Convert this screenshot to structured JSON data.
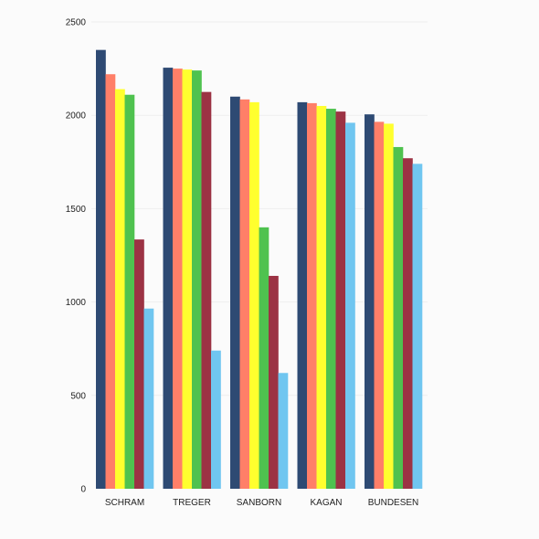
{
  "chart_data": {
    "type": "bar",
    "title": "",
    "xlabel": "",
    "ylabel": "",
    "ylim": [
      0,
      2500
    ],
    "yticks": [
      0,
      500,
      1000,
      1500,
      2000,
      2500
    ],
    "grid": false,
    "legend": "none",
    "categories": [
      "SCHRAM",
      "TREGER",
      "SANBORN",
      "KAGAN",
      "BUNDESEN"
    ],
    "series": [
      {
        "color": "#2e4a73",
        "values": [
          2350,
          2255,
          2100,
          2070,
          2005
        ]
      },
      {
        "color": "#ff7f68",
        "values": [
          2220,
          2250,
          2085,
          2065,
          1965
        ]
      },
      {
        "color": "#ffff2e",
        "values": [
          2140,
          2245,
          2070,
          2050,
          1955
        ]
      },
      {
        "color": "#4fc24f",
        "values": [
          2110,
          2240,
          1400,
          2035,
          1830
        ]
      },
      {
        "color": "#9c3344",
        "values": [
          1335,
          2125,
          1140,
          2020,
          1770
        ]
      },
      {
        "color": "#70c6f0",
        "values": [
          965,
          740,
          620,
          1960,
          1740
        ]
      }
    ]
  }
}
